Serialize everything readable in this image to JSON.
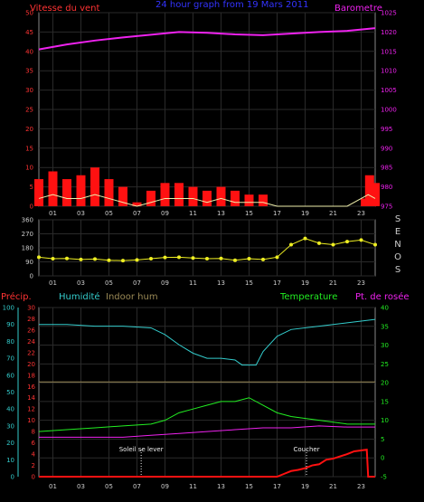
{
  "chart_data": [
    {
      "type": "bar",
      "title": "24 hour graph from 19 Mars 2011",
      "left_label": "Vitesse du vent",
      "right_label": "Barometre",
      "x_ticks": [
        "01",
        "03",
        "05",
        "07",
        "09",
        "11",
        "13",
        "15",
        "17",
        "19",
        "21",
        "23"
      ],
      "x_range": [
        0,
        24
      ],
      "y_left_range": [
        0,
        50
      ],
      "y_left_ticks": [
        "0",
        "5",
        "10",
        "15",
        "20",
        "25",
        "30",
        "35",
        "40",
        "45",
        "50"
      ],
      "y_right_range": [
        975,
        1025
      ],
      "y_right_ticks": [
        "975",
        "980",
        "985",
        "990",
        "995",
        "1000",
        "1005",
        "1010",
        "1015",
        "1020",
        "1025"
      ],
      "series": [
        {
          "name": "Barometre",
          "axis": "right",
          "x": [
            0,
            2,
            4,
            6,
            8,
            10,
            12,
            14,
            16,
            18,
            20,
            22,
            24
          ],
          "y": [
            1015.5,
            1016.8,
            1017.8,
            1018.6,
            1019.3,
            1020,
            1019.8,
            1019.4,
            1019.2,
            1019.6,
            1020,
            1020.3,
            1021
          ]
        },
        {
          "name": "wind-gust",
          "axis": "left",
          "x": [
            0,
            1,
            2,
            3,
            4,
            5,
            6,
            7,
            7.5,
            8,
            9,
            10,
            11,
            12,
            13,
            14,
            15,
            16,
            17,
            18,
            20,
            22,
            23.3,
            23.6,
            24
          ],
          "y": [
            7,
            9,
            7,
            8,
            10,
            7,
            5,
            1,
            0,
            4,
            6,
            6,
            5,
            4,
            5,
            4,
            3,
            3,
            0,
            0,
            0,
            0,
            2,
            8,
            6
          ]
        },
        {
          "name": "wind-speed",
          "axis": "left",
          "x": [
            0,
            1,
            2,
            3,
            4,
            5,
            6,
            7,
            8,
            9,
            10,
            11,
            12,
            13,
            14,
            15,
            16,
            17,
            18,
            20,
            22,
            23.5,
            24
          ],
          "y": [
            2,
            3,
            2,
            2,
            3,
            2,
            1,
            0,
            1,
            2,
            2,
            2,
            1,
            2,
            1,
            1,
            1,
            0,
            0,
            0,
            0,
            3,
            2
          ]
        }
      ]
    },
    {
      "type": "scatter",
      "x_ticks": [
        "01",
        "03",
        "05",
        "07",
        "09",
        "11",
        "13",
        "15",
        "17",
        "19",
        "21",
        "23"
      ],
      "x_range": [
        0,
        24
      ],
      "y_range": [
        0,
        360
      ],
      "y_ticks": [
        "0",
        "90",
        "180",
        "270",
        "360"
      ],
      "right_letters": [
        "S",
        "E",
        "N",
        "O",
        "S"
      ],
      "series": [
        {
          "name": "wind-direction",
          "x": [
            0,
            1,
            2,
            3,
            4,
            5,
            6,
            7,
            8,
            9,
            10,
            11,
            12,
            13,
            14,
            15,
            16,
            17,
            18,
            19,
            20,
            21,
            22,
            23,
            24
          ],
          "y": [
            120,
            110,
            112,
            105,
            108,
            100,
            98,
            102,
            110,
            118,
            120,
            115,
            110,
            112,
            100,
            110,
            105,
            120,
            200,
            240,
            210,
            200,
            220,
            230,
            200
          ]
        }
      ]
    },
    {
      "type": "line",
      "legend": [
        "Précip.",
        "Humidité",
        "Indoor hum",
        "Temperature",
        "Pt. de rosée"
      ],
      "annotations": [
        "Soleil se lever",
        "Coucher"
      ],
      "x_ticks": [
        "01",
        "03",
        "05",
        "07",
        "09",
        "11",
        "13",
        "15",
        "17",
        "19",
        "21",
        "23"
      ],
      "x_range": [
        0,
        24
      ],
      "y_left_range": [
        0,
        30
      ],
      "y_left_ticks": [
        "0",
        "2",
        "4",
        "6",
        "8",
        "10",
        "12",
        "14",
        "16",
        "18",
        "20",
        "22",
        "24",
        "26",
        "28",
        "30"
      ],
      "y_hum_range": [
        0,
        100
      ],
      "y_hum_ticks": [
        "0",
        "10",
        "20",
        "30",
        "40",
        "50",
        "60",
        "70",
        "80",
        "90",
        "100"
      ],
      "y_right_range": [
        -5,
        40
      ],
      "y_right_ticks": [
        "-5",
        "0",
        "5",
        "10",
        "15",
        "20",
        "25",
        "30",
        "35",
        "40"
      ],
      "series": [
        {
          "name": "Humidité",
          "axis": "hum",
          "x": [
            0,
            2,
            4,
            6,
            8,
            9,
            10,
            11,
            12,
            13,
            14,
            14.5,
            15.5,
            16,
            17,
            18,
            20,
            22,
            24
          ],
          "y": [
            90,
            90,
            89,
            89,
            88,
            84,
            78,
            73,
            70,
            70,
            69,
            66,
            66,
            74,
            83,
            87,
            89,
            91,
            93
          ]
        },
        {
          "name": "Indoor hum",
          "axis": "hum",
          "x": [
            0,
            24
          ],
          "y": [
            56,
            56
          ]
        },
        {
          "name": "Temperature",
          "axis": "right",
          "x": [
            0,
            2,
            4,
            6,
            8,
            9,
            10,
            11,
            12,
            13,
            14,
            15,
            16,
            17,
            18,
            20,
            22,
            24
          ],
          "y": [
            7,
            7.5,
            8,
            8.5,
            9,
            10,
            12,
            13,
            14,
            15,
            15,
            16,
            14,
            12,
            11,
            10,
            9,
            9
          ]
        },
        {
          "name": "Pt. de rosée",
          "axis": "right",
          "x": [
            0,
            2,
            4,
            6,
            8,
            10,
            12,
            14,
            16,
            18,
            20,
            22,
            24
          ],
          "y": [
            5.5,
            5.5,
            5.5,
            5.5,
            6,
            6.5,
            7,
            7.5,
            8,
            8,
            8.5,
            8.2,
            8.2
          ]
        },
        {
          "name": "Précip.",
          "axis": "left",
          "x": [
            0,
            17,
            17.5,
            18,
            18.5,
            19,
            19.5,
            20,
            20.5,
            21,
            22,
            22.5,
            23.4,
            23.5,
            23.6,
            24
          ],
          "y": [
            0,
            0,
            0.5,
            1,
            1.2,
            1.5,
            2,
            2.2,
            3,
            3.2,
            4,
            4.5,
            4.8,
            0,
            0,
            0
          ]
        }
      ],
      "markers": [
        {
          "label": "Soleil se lever",
          "x": 7.3
        },
        {
          "label": "Coucher",
          "x": 19.1
        }
      ]
    }
  ]
}
